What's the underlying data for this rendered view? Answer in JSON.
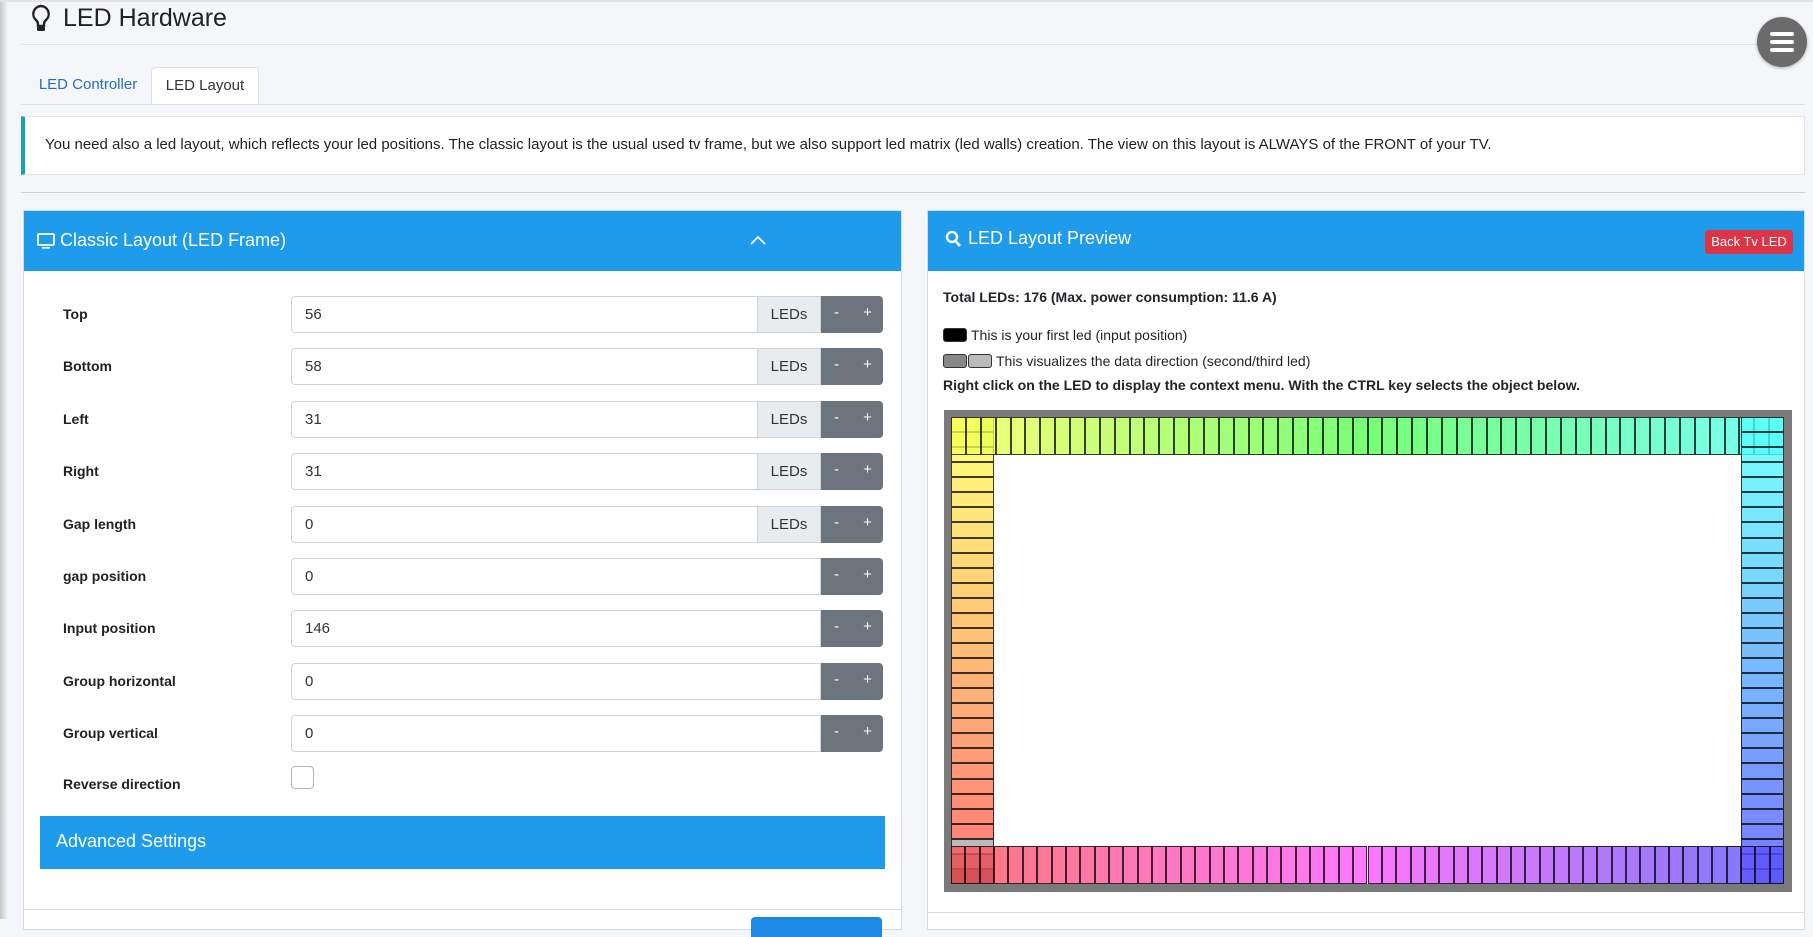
{
  "header": {
    "title": "LED Hardware",
    "icon": "lightbulb-icon"
  },
  "tabs": [
    {
      "label": "LED Controller"
    },
    {
      "label": "LED Layout",
      "active": true
    }
  ],
  "info": "You need also a led layout, which reflects your led positions. The classic layout is the usual used tv frame, but we also support led matrix (led walls) creation. The view on this layout is ALWAYS of the FRONT of your TV.",
  "classic": {
    "title": "Classic Layout (LED Frame)",
    "unit": "LEDs",
    "minus": "-",
    "plus": "+",
    "fields": [
      {
        "label": "Top",
        "value": "56",
        "unit": true
      },
      {
        "label": "Bottom",
        "value": "58",
        "unit": true
      },
      {
        "label": "Left",
        "value": "31",
        "unit": true
      },
      {
        "label": "Right",
        "value": "31",
        "unit": true
      },
      {
        "label": "Gap length",
        "value": "0",
        "unit": true
      },
      {
        "label": "gap position",
        "value": "0",
        "unit": false
      },
      {
        "label": "Input position",
        "value": "146",
        "unit": false
      },
      {
        "label": "Group horizontal",
        "value": "0",
        "unit": false
      },
      {
        "label": "Group vertical",
        "value": "0",
        "unit": false
      }
    ],
    "reverse_label": "Reverse direction",
    "reverse_checked": false,
    "advanced": "Advanced Settings"
  },
  "preview": {
    "title": "LED Layout Preview",
    "back_button": "Back Tv LED",
    "total": "Total LEDs: 176 (Max. power consumption: 11.6 A)",
    "legend_first": "This is your first led (input position)",
    "legend_direction": "This visualizes the data direction (second/third led)",
    "hint": "Right click on the LED to display the context menu. With the CTRL key selects the object below.",
    "colors": {
      "accent": "#1e9bea",
      "first_led": "#000000",
      "second_led": "#888888",
      "third_led": "#bbbbbb",
      "frame": "#7a7a7a"
    }
  }
}
